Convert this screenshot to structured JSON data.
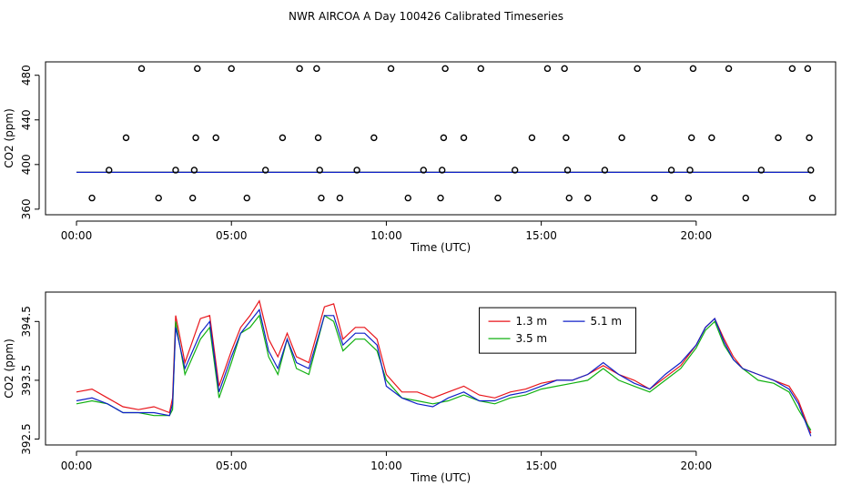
{
  "title": "NWR AIRCOA A  Day 100426  Calibrated Timeseries",
  "colors": {
    "red": "#e8141a",
    "green": "#10b010",
    "blue": "#1020c8",
    "axis": "#000000"
  },
  "chart_data": [
    {
      "type": "scatter",
      "xlabel": "Time (UTC)",
      "ylabel": "CO2 (ppm)",
      "xlim": [
        -1,
        24.5
      ],
      "ylim": [
        355,
        492
      ],
      "xticks": [
        0,
        5,
        10,
        15,
        20
      ],
      "xtick_labels": [
        "00:00",
        "05:00",
        "10:00",
        "15:00",
        "20:00"
      ],
      "yticks": [
        360,
        400,
        440,
        480
      ],
      "ytick_labels": [
        "360",
        "400",
        "440",
        "480"
      ],
      "points": {
        "x": [
          0.5,
          1.05,
          1.6,
          2.1,
          2.65,
          3.2,
          3.75,
          3.8,
          3.85,
          3.9,
          4.5,
          5.0,
          5.5,
          6.1,
          6.65,
          7.2,
          7.75,
          7.8,
          7.85,
          7.9,
          8.5,
          9.05,
          9.6,
          10.15,
          10.7,
          11.2,
          11.75,
          11.8,
          11.85,
          11.9,
          12.5,
          13.05,
          13.6,
          14.15,
          14.7,
          15.2,
          15.75,
          15.8,
          15.85,
          15.9,
          16.5,
          17.05,
          17.6,
          18.1,
          18.65,
          19.2,
          19.75,
          19.8,
          19.85,
          19.9,
          20.5,
          21.05,
          21.6,
          22.1,
          22.65,
          23.1,
          23.6,
          23.65,
          23.7,
          23.75
        ],
        "y": [
          370,
          395,
          424,
          486,
          370,
          395,
          370,
          395,
          424,
          486,
          424,
          486,
          370,
          395,
          424,
          486,
          486,
          424,
          395,
          370,
          370,
          395,
          424,
          486,
          370,
          395,
          370,
          395,
          424,
          486,
          424,
          486,
          370,
          395,
          424,
          486,
          486,
          424,
          395,
          370,
          370,
          395,
          424,
          486,
          370,
          395,
          370,
          395,
          424,
          486,
          424,
          486,
          370,
          395,
          424,
          486,
          486,
          424,
          395,
          370
        ]
      },
      "series": [
        {
          "name": "1.3 m",
          "color": "#e8141a",
          "x": [
            0,
            23.7
          ],
          "y": [
            393,
            393
          ]
        },
        {
          "name": "3.5 m",
          "color": "#10b010",
          "x": [
            0,
            23.7
          ],
          "y": [
            393,
            393
          ]
        },
        {
          "name": "5.1 m",
          "color": "#1020c8",
          "x": [
            0,
            23.7
          ],
          "y": [
            393,
            393
          ]
        }
      ]
    },
    {
      "type": "line",
      "xlabel": "Time (UTC)",
      "ylabel": "CO2 (ppm)",
      "xlim": [
        -1,
        24.5
      ],
      "ylim": [
        392.4,
        395.0
      ],
      "xticks": [
        0,
        5,
        10,
        15,
        20
      ],
      "xtick_labels": [
        "00:00",
        "05:00",
        "10:00",
        "15:00",
        "20:00"
      ],
      "yticks": [
        392.5,
        393.5,
        394.5
      ],
      "ytick_labels": [
        "392.5",
        "393.5",
        "394.5"
      ],
      "legend": {
        "position": "top-center",
        "entries": [
          "1.3 m",
          "3.5 m",
          "5.1 m"
        ]
      },
      "x": [
        0,
        0.5,
        1,
        1.5,
        2,
        2.5,
        3,
        3.1,
        3.2,
        3.5,
        4,
        4.3,
        4.6,
        5,
        5.3,
        5.6,
        5.9,
        6.2,
        6.5,
        6.8,
        7.1,
        7.5,
        8,
        8.3,
        8.6,
        9,
        9.3,
        9.7,
        10,
        10.5,
        11,
        11.5,
        12,
        12.5,
        13,
        13.5,
        14,
        14.5,
        15,
        15.5,
        16,
        16.5,
        17,
        17.5,
        18,
        18.5,
        19,
        19.5,
        20,
        20.3,
        20.6,
        20.9,
        21.2,
        21.5,
        22,
        22.5,
        23,
        23.3,
        23.7
      ],
      "series": [
        {
          "name": "1.3 m",
          "color": "#e8141a",
          "values": [
            393.3,
            393.35,
            393.2,
            393.05,
            393.0,
            393.05,
            392.95,
            393.2,
            394.6,
            393.8,
            394.55,
            394.6,
            393.4,
            394.0,
            394.4,
            394.6,
            394.85,
            394.2,
            393.9,
            394.3,
            393.9,
            393.8,
            394.75,
            394.8,
            394.2,
            394.4,
            394.4,
            394.2,
            393.6,
            393.3,
            393.3,
            393.2,
            393.3,
            393.4,
            393.25,
            393.2,
            393.3,
            393.35,
            393.45,
            393.5,
            393.5,
            393.6,
            393.75,
            393.6,
            393.5,
            393.35,
            393.55,
            393.75,
            394.1,
            394.4,
            394.55,
            394.2,
            393.9,
            393.7,
            393.6,
            393.5,
            393.4,
            393.15,
            392.6
          ]
        },
        {
          "name": "3.5 m",
          "color": "#10b010",
          "values": [
            393.1,
            393.15,
            393.1,
            392.95,
            392.95,
            392.9,
            392.9,
            393.0,
            394.5,
            393.6,
            394.2,
            394.4,
            393.2,
            393.8,
            394.3,
            394.4,
            394.6,
            393.9,
            393.6,
            394.2,
            393.7,
            393.6,
            394.6,
            394.5,
            394.0,
            394.2,
            394.2,
            394.0,
            393.5,
            393.2,
            393.15,
            393.1,
            393.15,
            393.25,
            393.15,
            393.1,
            393.2,
            393.25,
            393.35,
            393.4,
            393.45,
            393.5,
            393.7,
            393.5,
            393.4,
            393.3,
            393.5,
            393.7,
            394.05,
            394.35,
            394.5,
            394.1,
            393.85,
            393.7,
            393.5,
            393.45,
            393.3,
            393.0,
            392.65
          ]
        },
        {
          "name": "5.1 m",
          "color": "#1020c8",
          "values": [
            393.15,
            393.2,
            393.1,
            392.95,
            392.95,
            392.95,
            392.9,
            393.1,
            394.4,
            393.7,
            394.3,
            394.5,
            393.3,
            393.9,
            394.3,
            394.5,
            394.7,
            394.0,
            393.7,
            394.2,
            393.8,
            393.7,
            394.6,
            394.6,
            394.1,
            394.3,
            394.3,
            394.1,
            393.4,
            393.2,
            393.1,
            393.05,
            393.2,
            393.3,
            393.15,
            393.15,
            393.25,
            393.3,
            393.4,
            393.5,
            393.5,
            393.6,
            393.8,
            393.6,
            393.45,
            393.35,
            393.6,
            393.8,
            394.1,
            394.4,
            394.55,
            394.15,
            393.85,
            393.7,
            393.6,
            393.5,
            393.35,
            393.1,
            392.55
          ]
        }
      ]
    }
  ]
}
